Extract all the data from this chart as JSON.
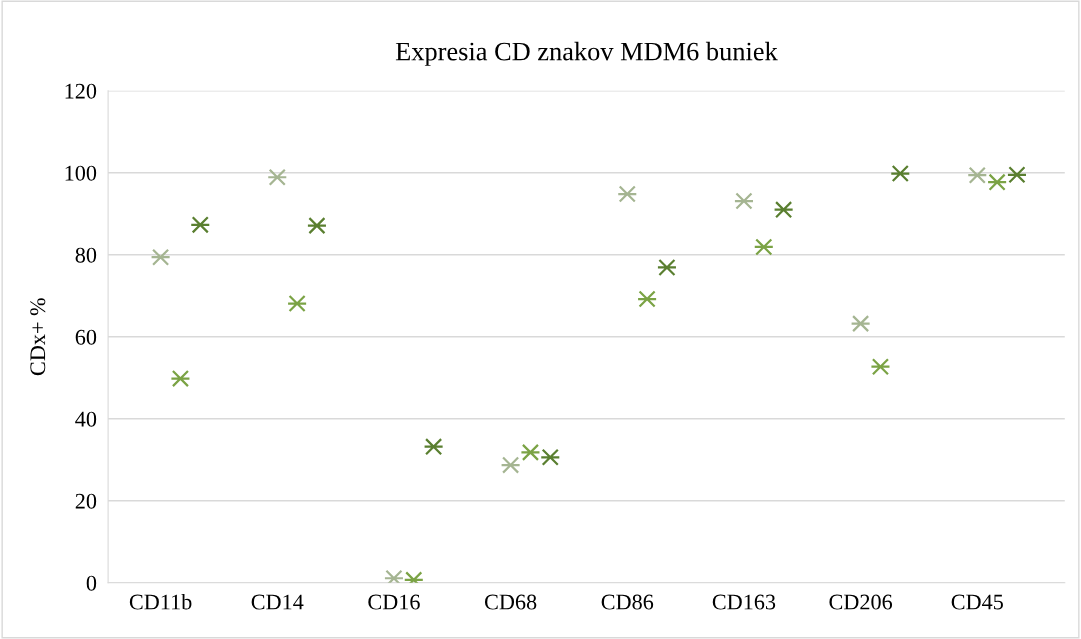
{
  "chart_data": {
    "type": "scatter",
    "title": "Expresia CD znakov MDM6 buniek",
    "ylabel": "CDx+ %",
    "categories": [
      "CD11b",
      "CD14",
      "CD16",
      "CD68",
      "CD86",
      "CD163",
      "CD206",
      "CD45"
    ],
    "series": [
      {
        "color": "#a5b592",
        "values": [
          79.4,
          98.9,
          1.1,
          28.7,
          94.8,
          93.1,
          63.2,
          99.4
        ]
      },
      {
        "color": "#7ba345",
        "values": [
          49.8,
          68.1,
          0.7,
          31.8,
          69.2,
          81.9,
          52.7,
          97.7
        ]
      },
      {
        "color": "#5a7f30",
        "values": [
          87.3,
          87.1,
          33.2,
          30.6,
          76.9,
          91.0,
          99.8,
          99.5
        ]
      }
    ],
    "ylim": [
      0,
      120
    ],
    "yticks": [
      0,
      20,
      40,
      60,
      80,
      100,
      120
    ],
    "grid": "y",
    "marker": "cross",
    "legend": false
  }
}
